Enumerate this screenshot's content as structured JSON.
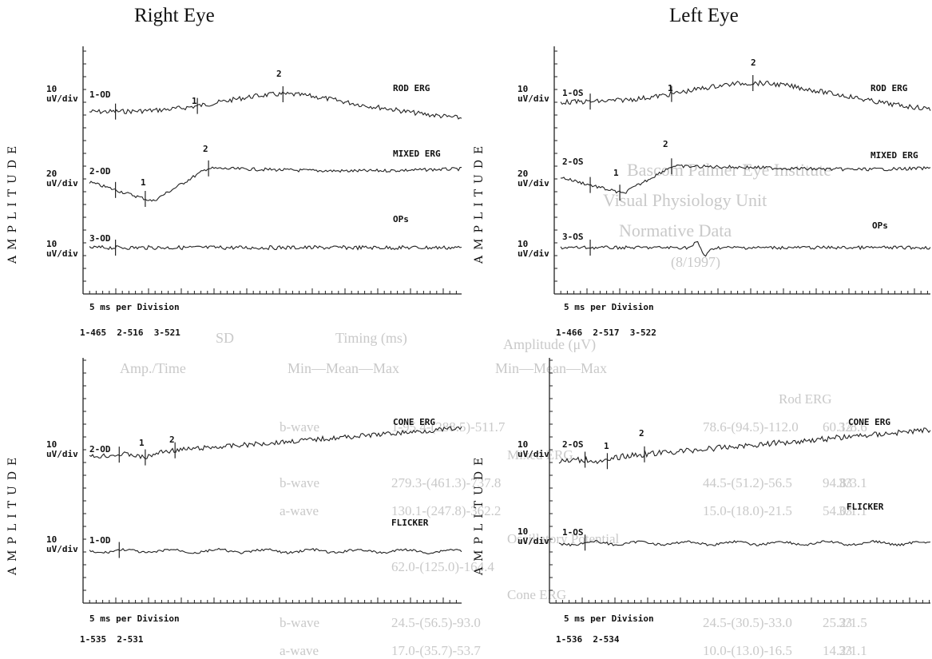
{
  "right_eye": {
    "title": "Right Eye",
    "top_panel": {
      "axis_label": "AMPLITUDE",
      "x_caption": "5 ms per Division",
      "counts": [
        "1-465",
        "2-516",
        "3-521"
      ],
      "traces": [
        {
          "id": "1-OD",
          "name": "ROD ERG",
          "scale": [
            "10",
            "uV/div"
          ],
          "markers": [
            "1",
            "2"
          ]
        },
        {
          "id": "2-OD",
          "name": "MIXED ERG",
          "scale": [
            "20",
            "uV/div"
          ],
          "markers": [
            "1",
            "2"
          ]
        },
        {
          "id": "3-OD",
          "name": "OPs",
          "scale": [
            "10",
            "uV/div"
          ],
          "markers": []
        }
      ]
    },
    "bottom_panel": {
      "axis_label": "AMPLITUDE",
      "x_caption": "5 ms per Division",
      "counts": [
        "1-535",
        "2-531"
      ],
      "traces": [
        {
          "id": "2-OD",
          "name": "CONE ERG",
          "scale": [
            "10",
            "uV/div"
          ],
          "markers": [
            "1",
            "2"
          ]
        },
        {
          "id": "1-OD",
          "name": "FLICKER",
          "scale": [
            "10",
            "uV/div"
          ],
          "markers": []
        }
      ]
    }
  },
  "left_eye": {
    "title": "Left Eye",
    "top_panel": {
      "axis_label": "AMPLITUDE",
      "x_caption": "5 ms per Division",
      "counts": [
        "1-466",
        "2-517",
        "3-522"
      ],
      "traces": [
        {
          "id": "1-OS",
          "name": "ROD ERG",
          "scale": [
            "10",
            "uV/div"
          ],
          "markers": [
            "1",
            "2"
          ]
        },
        {
          "id": "2-OS",
          "name": "MIXED ERG",
          "scale": [
            "20",
            "uV/div"
          ],
          "markers": [
            "1",
            "2"
          ]
        },
        {
          "id": "3-OS",
          "name": "OPs",
          "scale": [
            "10",
            "uV/div"
          ],
          "markers": []
        }
      ]
    },
    "bottom_panel": {
      "axis_label": "AMPLITUDE",
      "x_caption": "5 ms per Division",
      "counts": [
        "1-536",
        "2-534"
      ],
      "traces": [
        {
          "id": "2-OS",
          "name": "CONE ERG",
          "scale": [
            "10",
            "uV/div"
          ],
          "markers": [
            "1",
            "2"
          ]
        },
        {
          "id": "1-OS",
          "name": "FLICKER",
          "scale": [
            "10",
            "uV/div"
          ],
          "markers": []
        }
      ]
    }
  },
  "chart_data": [
    {
      "type": "line",
      "title": "Right Eye",
      "ylabel": "AMPLITUDE",
      "xlabel": "5 ms per Division",
      "series": [
        {
          "name": "ROD ERG"
        },
        {
          "name": "MIXED ERG"
        },
        {
          "name": "OPs"
        }
      ]
    },
    {
      "type": "line",
      "title": "Right Eye",
      "ylabel": "AMPLITUDE",
      "xlabel": "5 ms per Division",
      "series": [
        {
          "name": "CONE ERG"
        },
        {
          "name": "FLICKER"
        }
      ]
    },
    {
      "type": "line",
      "title": "Left Eye",
      "ylabel": "AMPLITUDE",
      "xlabel": "5 ms per Division",
      "series": [
        {
          "name": "ROD ERG"
        },
        {
          "name": "MIXED ERG"
        },
        {
          "name": "OPs"
        }
      ]
    },
    {
      "type": "line",
      "title": "Left Eye",
      "ylabel": "AMPLITUDE",
      "xlabel": "5 ms per Division",
      "series": [
        {
          "name": "CONE ERG"
        },
        {
          "name": "FLICKER"
        }
      ]
    }
  ],
  "background_table": {
    "heading": [
      "Bascom Palmer Eye Institute",
      "Visual Physiology Unit",
      "Normative Data",
      "(8/1997)"
    ],
    "col_groups": [
      "Amplitude (μV)",
      "Timing (ms)",
      "SD"
    ],
    "col_sub": [
      "Min—Mean—Max",
      "Min—Mean—Max",
      "Amp./Time"
    ],
    "rows": [
      {
        "group": "Rod ERG"
      },
      {
        "wave": "b-wave",
        "amp": "1-95.4-(288.5)-511.7",
        "time": "78.6-(94.5)-112.0",
        "sd": "60.1/8.6",
        "n": "32"
      },
      {
        "group": "Mixed ERG"
      },
      {
        "wave": "b-wave",
        "amp": "279.3-(461.3)-737.8",
        "time": "44.5-(51.2)-56.5",
        "sd": "94.8/3.1",
        "n": "33"
      },
      {
        "wave": "a-wave",
        "amp": "130.1-(247.8)-362.2",
        "time": "15.0-(18.0)-21.5",
        "sd": "54.0/1.1",
        "n": "33"
      },
      {
        "group": "Oscillatory Potential"
      },
      {
        "wave": "",
        "amp": "62.0-(125.0)-164.4",
        "time": "",
        "sd": "",
        "n": ""
      },
      {
        "group": "Cone ERG"
      },
      {
        "wave": "b-wave",
        "amp": "24.5-(56.5)-93.0",
        "time": "24.5-(30.5)-33.0",
        "sd": "25.2/1.5",
        "n": "33"
      },
      {
        "wave": "a-wave",
        "amp": "17.0-(35.7)-53.7",
        "time": "10.0-(13.0)-16.5",
        "sd": "14.2/1.1",
        "n": "33"
      }
    ]
  }
}
